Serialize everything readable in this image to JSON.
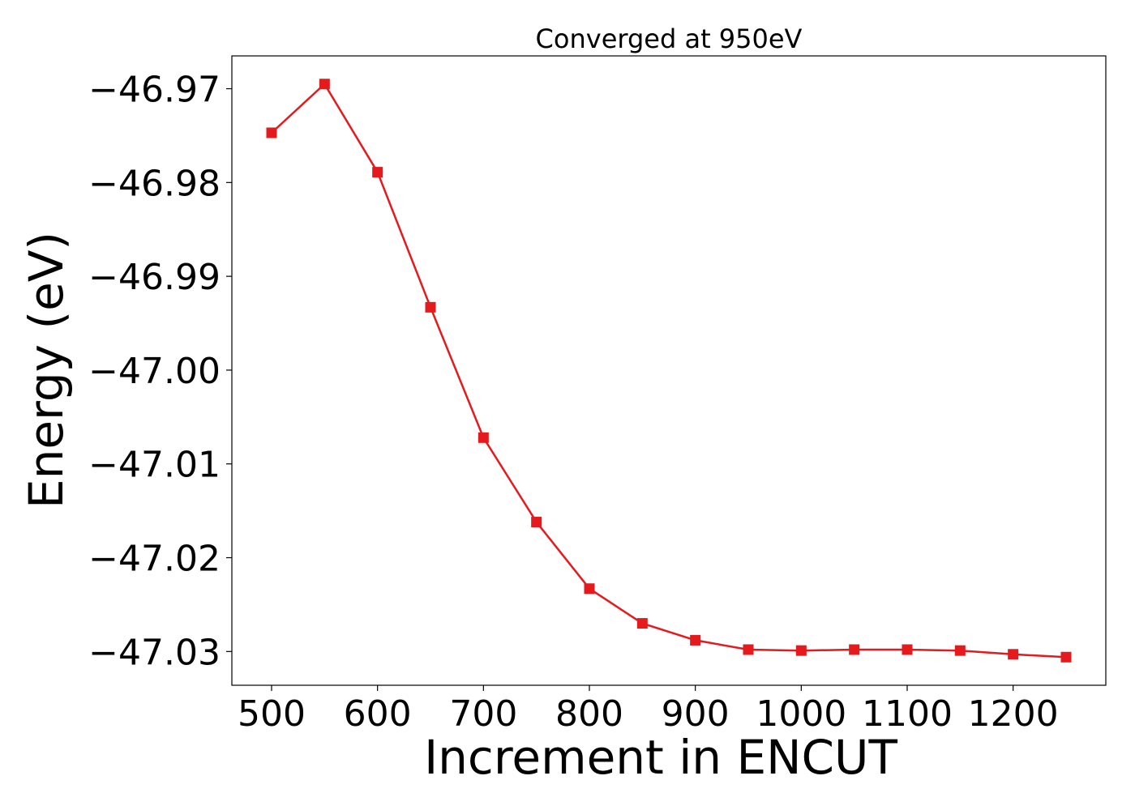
{
  "chart_data": {
    "type": "line",
    "title": "Converged at 950eV",
    "xlabel": "Increment in ENCUT",
    "ylabel": "Energy (eV)",
    "x": [
      500,
      550,
      600,
      650,
      700,
      750,
      800,
      850,
      900,
      950,
      1000,
      1050,
      1100,
      1150,
      1200,
      1250
    ],
    "series": [
      {
        "name": "",
        "color": "#e41a1c",
        "marker": "square",
        "values": [
          -46.9747,
          -46.9695,
          -46.9789,
          -46.9933,
          -47.0072,
          -47.0162,
          -47.0233,
          -47.027,
          -47.0288,
          -47.0298,
          -47.0299,
          -47.0298,
          -47.0298,
          -47.0299,
          -47.0303,
          -47.0306
        ]
      }
    ],
    "xlim": [
      462.5,
      1287.5
    ],
    "ylim": [
      -47.0336,
      -46.9665
    ],
    "xticks": [
      500,
      600,
      700,
      800,
      900,
      1000,
      1100,
      1200
    ],
    "xtick_labels": [
      "500",
      "600",
      "700",
      "800",
      "900",
      "1000",
      "1100",
      "1200"
    ],
    "yticks": [
      -46.97,
      -46.98,
      -46.99,
      -47.0,
      -47.01,
      -47.02,
      -47.03
    ],
    "ytick_labels": [
      "−46.97",
      "−46.98",
      "−46.99",
      "−47.00",
      "−47.01",
      "−47.02",
      "−47.03"
    ],
    "grid": false,
    "legend": "none"
  }
}
